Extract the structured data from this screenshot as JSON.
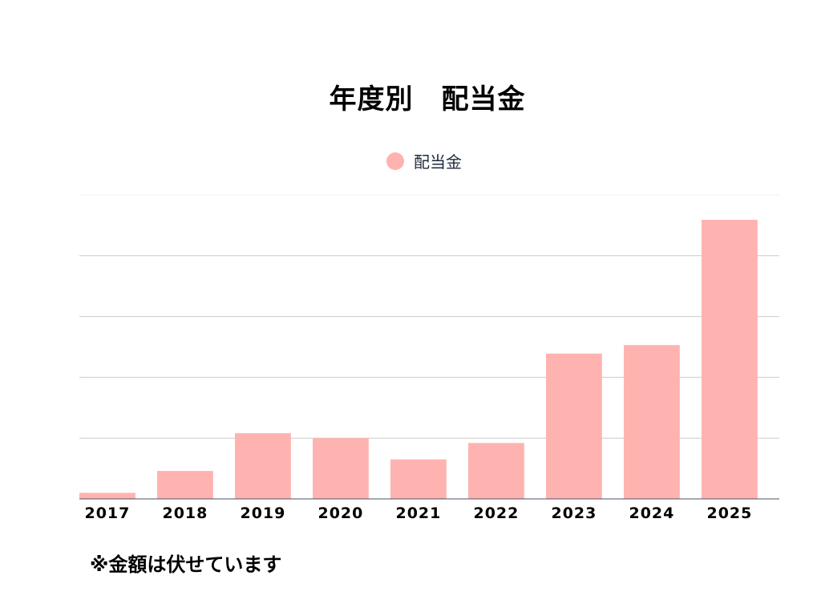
{
  "colors": {
    "bar": "#ffb3b0",
    "grid": "#cccccc",
    "baseline": "#4a5566",
    "text": "#000000"
  },
  "chart_data": {
    "type": "bar",
    "title": "年度別　配当金",
    "legend": {
      "position": "top",
      "entries": [
        "配当金"
      ]
    },
    "categories": [
      "2017",
      "2018",
      "2019",
      "2020",
      "2021",
      "2022",
      "2023",
      "2024",
      "2025"
    ],
    "series": [
      {
        "name": "配当金",
        "values": [
          1.0,
          4.6,
          10.8,
          10.0,
          6.5,
          9.2,
          23.9,
          25.3,
          45.9
        ]
      }
    ],
    "ylim": [
      0,
      50
    ],
    "ytick_step": 10,
    "grid": true,
    "y_tick_labels_visible": false
  },
  "note": "※金額は伏せています"
}
